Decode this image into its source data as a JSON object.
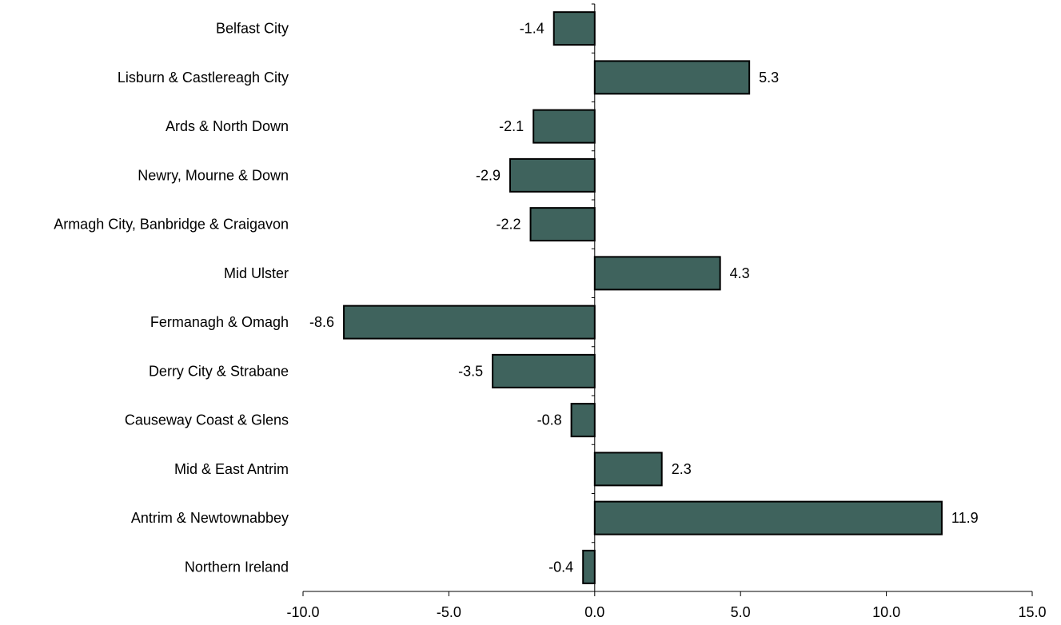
{
  "chart_data": {
    "type": "bar",
    "orientation": "horizontal",
    "categories": [
      "Belfast City",
      "Lisburn & Castlereagh City",
      "Ards & North Down",
      "Newry, Mourne & Down",
      "Armagh City, Banbridge & Craigavon",
      "Mid Ulster",
      "Fermanagh & Omagh",
      "Derry City & Strabane",
      "Causeway Coast & Glens",
      "Mid & East Antrim",
      "Antrim & Newtownabbey",
      "Northern Ireland"
    ],
    "values": [
      -1.4,
      5.3,
      -2.1,
      -2.9,
      -2.2,
      4.3,
      -8.6,
      -3.5,
      -0.8,
      2.3,
      11.9,
      -0.4
    ],
    "data_labels": [
      "-1.4",
      "5.3",
      "-2.1",
      "-2.9",
      "-2.2",
      "4.3",
      "-8.6",
      "-3.5",
      "-0.8",
      "2.3",
      "11.9",
      "-0.4"
    ],
    "x_ticks": [
      -10,
      -5,
      0,
      5,
      10,
      15
    ],
    "x_tick_labels": [
      "-10.0",
      "-5.0",
      "0.0",
      "5.0",
      "10.0",
      "15.0"
    ],
    "xlim": [
      -10,
      15
    ],
    "title": "",
    "xlabel": "",
    "ylabel": "",
    "grid": false,
    "legend": false,
    "colors": {
      "bar_fill": "#3f635d",
      "bar_stroke": "#000000",
      "axis": "#000000",
      "text": "#000000"
    }
  }
}
